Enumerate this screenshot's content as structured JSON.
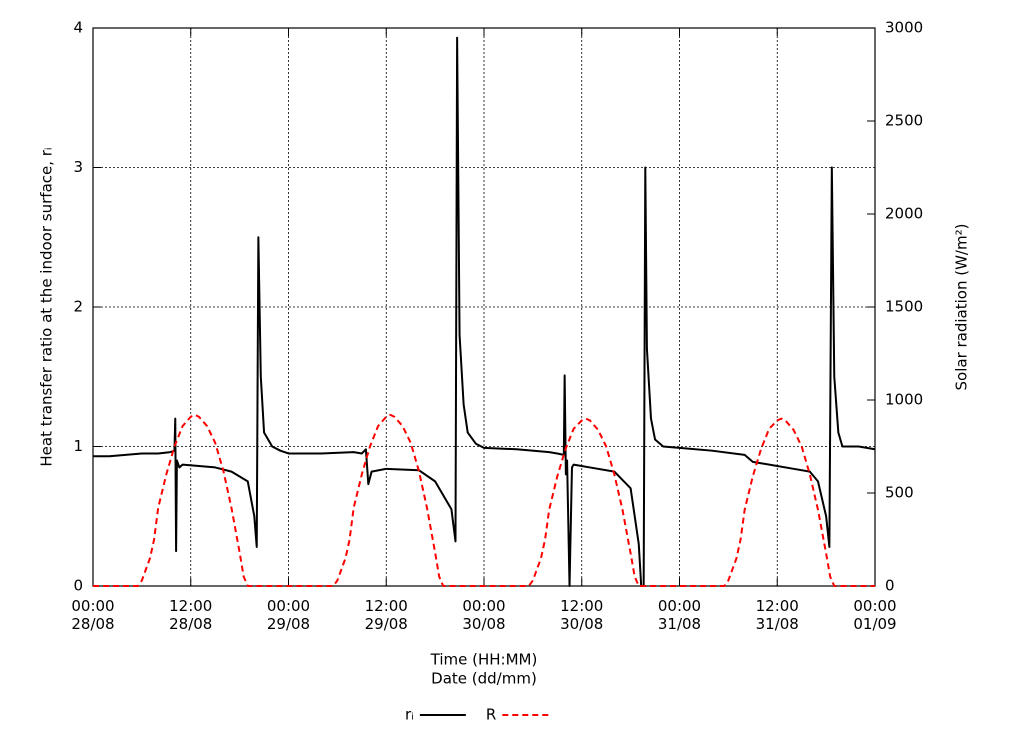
{
  "chart_data": {
    "type": "line",
    "xlabel": "Time (HH:MM)",
    "xlabel2": "Date (dd/mm)",
    "ylabel": "Heat transfer ratio at the indoor surface, rᵢ",
    "y2label": "Solar radiation (W/m²)",
    "xlim": [
      0,
      96
    ],
    "xticks": [
      {
        "value": 0,
        "label": "00:00 28/08"
      },
      {
        "value": 12,
        "label": "12:00 28/08"
      },
      {
        "value": 24,
        "label": "00:00 29/08"
      },
      {
        "value": 36,
        "label": "12:00 29/08"
      },
      {
        "value": 48,
        "label": "00:00 30/08"
      },
      {
        "value": 60,
        "label": "12:00 30/08"
      },
      {
        "value": 72,
        "label": "00:00 31/08"
      },
      {
        "value": 84,
        "label": "12:00 31/08"
      },
      {
        "value": 96,
        "label": "00:00 01/09"
      }
    ],
    "ylim": [
      0,
      4
    ],
    "yticks": [
      0,
      1,
      2,
      3,
      4
    ],
    "y2lim": [
      0,
      3000
    ],
    "y2ticks": [
      0,
      500,
      1000,
      1500,
      2000,
      2500,
      3000
    ],
    "grid": true,
    "legend": "bottom",
    "series": [
      {
        "name": "rᵢ",
        "color": "#000000",
        "dash": "solid",
        "x": [
          0,
          2,
          4,
          6,
          8,
          9.5,
          10,
          10.1,
          10.2,
          10.3,
          10.6,
          11,
          13,
          15,
          17,
          19,
          19.8,
          20.1,
          20.3,
          20.6,
          21,
          22,
          23,
          24,
          28,
          32,
          33,
          33.5,
          33.8,
          34.2,
          36,
          40,
          42,
          44,
          44.5,
          44.7,
          45,
          45.5,
          46,
          47,
          48,
          52,
          56,
          57,
          57.8,
          57.9,
          58.05,
          58.2,
          58.5,
          58.8,
          59,
          61,
          64,
          66,
          67,
          67.3,
          67.6,
          67.8,
          68,
          68.5,
          69,
          70,
          72,
          76,
          80,
          81,
          82,
          84,
          86,
          88,
          89,
          90,
          90.4,
          90.7,
          91,
          91.5,
          92,
          94,
          96
        ],
        "values": [
          0.93,
          0.93,
          0.94,
          0.95,
          0.95,
          0.96,
          0.97,
          1.2,
          0.25,
          0.9,
          0.85,
          0.87,
          0.86,
          0.85,
          0.82,
          0.75,
          0.5,
          0.28,
          2.5,
          1.5,
          1.1,
          1.0,
          0.97,
          0.95,
          0.95,
          0.96,
          0.95,
          0.98,
          0.73,
          0.82,
          0.84,
          0.83,
          0.75,
          0.55,
          0.32,
          3.93,
          1.8,
          1.3,
          1.1,
          1.02,
          0.99,
          0.98,
          0.96,
          0.95,
          0.94,
          1.51,
          0.8,
          0.9,
          0,
          0.85,
          0.87,
          0.85,
          0.82,
          0.7,
          0.3,
          0,
          0,
          3.0,
          1.7,
          1.2,
          1.05,
          1.0,
          0.99,
          0.97,
          0.94,
          0.89,
          0.88,
          0.86,
          0.84,
          0.82,
          0.75,
          0.5,
          0.28,
          3.0,
          1.5,
          1.1,
          1.0,
          1.0,
          0.98
        ]
      },
      {
        "name": "R",
        "color": "#ff0000",
        "dash": "dashed",
        "axis": "y2",
        "x": [
          0,
          5.5,
          6,
          7,
          7.5,
          8,
          9,
          10,
          11,
          12,
          12.5,
          13,
          14,
          15,
          16,
          17,
          18,
          18.5,
          19,
          29.5,
          30,
          31,
          31.5,
          32,
          33,
          34,
          35,
          36,
          36.5,
          37,
          38,
          39,
          40,
          41,
          42,
          42.5,
          43,
          53.5,
          54,
          55,
          55.5,
          56,
          57,
          58,
          59,
          60,
          60.5,
          61,
          62,
          63,
          64,
          65,
          66,
          66.5,
          67,
          77.5,
          78,
          79,
          79.5,
          80,
          81,
          82,
          83,
          84,
          84.5,
          85,
          86,
          87,
          88,
          89,
          90,
          90.5,
          91,
          96
        ],
        "values": [
          0,
          0,
          30,
          150,
          250,
          420,
          600,
          750,
          860,
          910,
          920,
          910,
          860,
          770,
          620,
          420,
          180,
          50,
          0,
          0,
          30,
          150,
          250,
          420,
          600,
          750,
          860,
          910,
          920,
          910,
          860,
          770,
          620,
          420,
          180,
          50,
          0,
          0,
          30,
          150,
          250,
          410,
          590,
          735,
          845,
          890,
          900,
          890,
          840,
          750,
          600,
          410,
          175,
          50,
          0,
          0,
          30,
          150,
          250,
          410,
          590,
          735,
          845,
          890,
          900,
          890,
          840,
          750,
          600,
          410,
          175,
          50,
          0,
          0
        ]
      }
    ]
  }
}
